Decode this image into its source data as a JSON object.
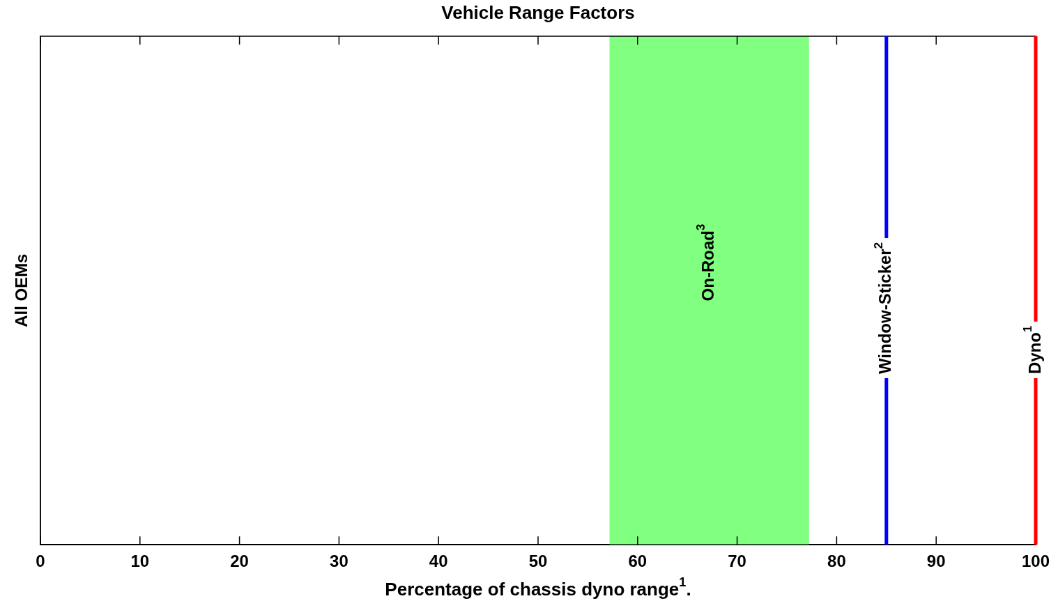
{
  "chart_data": {
    "type": "bar",
    "orientation": "horizontal",
    "title": "Vehicle Range Factors",
    "xlabel": "Percentage of chassis dyno range$^{1}$.",
    "categories": [
      "All OEMs"
    ],
    "series": [
      {
        "name": "On-Road$^{3}$",
        "color": "#80ff80",
        "values": [
          20
        ],
        "base": [
          57.2
        ]
      }
    ],
    "xlim": [
      0,
      100
    ],
    "xticks": [
      0,
      10,
      20,
      30,
      40,
      50,
      60,
      70,
      80,
      90,
      100
    ],
    "ref_lines": [
      {
        "axis": "x",
        "value": 85,
        "label": "Window-Sticker$^{2}$",
        "color": "#0000ff"
      },
      {
        "axis": "x",
        "value": 100,
        "label": "Dyno$^{1}$",
        "color": "#ff0000"
      }
    ],
    "grid": false,
    "legend": false
  }
}
